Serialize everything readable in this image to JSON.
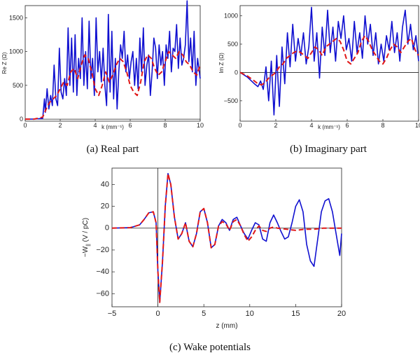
{
  "captions": {
    "a": "(a)  Real part",
    "b": "(b)  Imaginary part",
    "c": "(c)  Wake potentials"
  },
  "colors": {
    "blue": "#1010d0",
    "red": "#e01818",
    "axis": "#222222"
  },
  "chart_data": [
    {
      "id": "a",
      "type": "line",
      "xlabel": "k (mm⁻¹)",
      "ylabel": "Re Z (Ω)",
      "xlim": [
        0,
        10
      ],
      "ylim": [
        -30,
        1680
      ],
      "xticks": [
        0,
        2,
        4,
        6,
        8,
        10
      ],
      "yticks": [
        0,
        500,
        1000,
        1500
      ],
      "grid": false,
      "series": [
        {
          "style": "solid",
          "color": "#1010d0",
          "x": [
            0,
            0.5,
            1.0,
            1.1,
            1.15,
            1.25,
            1.35,
            1.45,
            1.55,
            1.65,
            1.75,
            1.85,
            1.95,
            2.05,
            2.15,
            2.25,
            2.35,
            2.45,
            2.55,
            2.65,
            2.75,
            2.85,
            2.95,
            3.05,
            3.15,
            3.25,
            3.35,
            3.45,
            3.55,
            3.65,
            3.75,
            3.85,
            3.95,
            4.05,
            4.15,
            4.25,
            4.35,
            4.45,
            4.55,
            4.65,
            4.75,
            4.85,
            4.95,
            5.05,
            5.15,
            5.25,
            5.35,
            5.45,
            5.55,
            5.65,
            5.75,
            5.85,
            5.95,
            6.05,
            6.15,
            6.25,
            6.35,
            6.45,
            6.55,
            6.65,
            6.75,
            6.85,
            6.95,
            7.05,
            7.15,
            7.25,
            7.35,
            7.45,
            7.55,
            7.65,
            7.75,
            7.85,
            7.95,
            8.05,
            8.15,
            8.25,
            8.35,
            8.45,
            8.55,
            8.65,
            8.75,
            8.85,
            8.95,
            9.05,
            9.15,
            9.25,
            9.35,
            9.45,
            9.55,
            9.65,
            9.75,
            9.85,
            10.0
          ],
          "y": [
            0,
            0,
            10,
            300,
            100,
            450,
            150,
            350,
            200,
            800,
            300,
            200,
            1050,
            400,
            300,
            600,
            350,
            1350,
            500,
            1200,
            400,
            1250,
            350,
            900,
            600,
            1500,
            500,
            1000,
            450,
            1450,
            600,
            900,
            350,
            1500,
            700,
            1000,
            550,
            1050,
            500,
            200,
            1550,
            400,
            1300,
            300,
            900,
            150,
            700,
            1100,
            900,
            1300,
            700,
            950,
            600,
            850,
            1000,
            500,
            900,
            450,
            1200,
            700,
            1350,
            500,
            800,
            950,
            350,
            700,
            1200,
            1050,
            600,
            1100,
            800,
            1000,
            500,
            1100,
            900,
            1300,
            700,
            1050,
            1000,
            1400,
            750,
            1200,
            800,
            900,
            1100,
            1750,
            850,
            1200,
            700,
            1300,
            500,
            900,
            600
          ]
        },
        {
          "style": "dashed",
          "color": "#e01818",
          "x": [
            0,
            0.5,
            1.0,
            1.2,
            1.4,
            1.6,
            1.8,
            2.0,
            2.2,
            2.4,
            2.6,
            2.8,
            3.0,
            3.2,
            3.4,
            3.6,
            3.8,
            4.0,
            4.2,
            4.4,
            4.6,
            4.8,
            5.0,
            5.2,
            5.4,
            5.6,
            5.8,
            6.0,
            6.2,
            6.4,
            6.6,
            6.8,
            7.0,
            7.2,
            7.4,
            7.6,
            7.8,
            8.0,
            8.2,
            8.4,
            8.6,
            8.8,
            9.0,
            9.2,
            9.4,
            9.6,
            9.8,
            10.0
          ],
          "y": [
            0,
            0,
            30,
            150,
            250,
            300,
            350,
            450,
            550,
            500,
            700,
            750,
            600,
            800,
            950,
            900,
            700,
            450,
            350,
            500,
            700,
            550,
            650,
            800,
            900,
            850,
            700,
            500,
            400,
            350,
            550,
            850,
            950,
            900,
            750,
            650,
            700,
            850,
            1000,
            950,
            900,
            1000,
            950,
            850,
            800,
            700,
            650,
            800
          ]
        }
      ]
    },
    {
      "id": "b",
      "type": "line",
      "xlabel": "k (mm⁻¹)",
      "ylabel": "Im Z (Ω)",
      "xlim": [
        0,
        10
      ],
      "ylim": [
        -860,
        1180
      ],
      "xticks": [
        0,
        2,
        4,
        6,
        8,
        10
      ],
      "yticks": [
        -500,
        0,
        500,
        1000
      ],
      "grid": false,
      "series": [
        {
          "style": "solid",
          "color": "#1010d0",
          "x": [
            0,
            0.4,
            0.8,
            1.0,
            1.15,
            1.3,
            1.45,
            1.6,
            1.75,
            1.9,
            2.05,
            2.2,
            2.35,
            2.5,
            2.65,
            2.8,
            2.95,
            3.1,
            3.25,
            3.4,
            3.55,
            3.7,
            3.85,
            4.0,
            4.15,
            4.3,
            4.45,
            4.6,
            4.75,
            4.9,
            5.05,
            5.2,
            5.35,
            5.5,
            5.65,
            5.8,
            5.95,
            6.1,
            6.25,
            6.4,
            6.55,
            6.7,
            6.85,
            7.0,
            7.15,
            7.3,
            7.45,
            7.6,
            7.75,
            7.9,
            8.05,
            8.2,
            8.35,
            8.5,
            8.65,
            8.8,
            8.95,
            9.1,
            9.25,
            9.4,
            9.55,
            9.7,
            9.85,
            10.0
          ],
          "y": [
            0,
            -80,
            -200,
            -250,
            -150,
            -300,
            100,
            -500,
            200,
            -750,
            300,
            -600,
            450,
            -200,
            700,
            100,
            850,
            200,
            600,
            300,
            700,
            150,
            450,
            1150,
            200,
            700,
            -100,
            800,
            300,
            1100,
            350,
            800,
            200,
            900,
            600,
            1000,
            400,
            600,
            200,
            900,
            350,
            700,
            250,
            1000,
            500,
            850,
            300,
            700,
            150,
            500,
            200,
            650,
            400,
            900,
            350,
            700,
            200,
            800,
            1100,
            500,
            850,
            400,
            650,
            200
          ]
        },
        {
          "style": "dashed",
          "color": "#e01818",
          "x": [
            0,
            0.4,
            0.8,
            1.0,
            1.2,
            1.4,
            1.6,
            1.8,
            2.0,
            2.2,
            2.4,
            2.6,
            2.8,
            3.0,
            3.2,
            3.4,
            3.6,
            3.8,
            4.0,
            4.2,
            4.4,
            4.6,
            4.8,
            5.0,
            5.2,
            5.4,
            5.6,
            5.8,
            6.0,
            6.2,
            6.4,
            6.6,
            6.8,
            7.0,
            7.2,
            7.4,
            7.6,
            7.8,
            8.0,
            8.2,
            8.4,
            8.6,
            8.8,
            9.0,
            9.2,
            9.4,
            9.6,
            9.8,
            10.0
          ],
          "y": [
            0,
            -60,
            -150,
            -200,
            -220,
            -180,
            -100,
            -50,
            0,
            100,
            150,
            250,
            300,
            350,
            380,
            350,
            300,
            250,
            350,
            450,
            400,
            300,
            450,
            500,
            550,
            600,
            550,
            400,
            200,
            150,
            250,
            350,
            550,
            650,
            550,
            400,
            300,
            200,
            150,
            250,
            400,
            500,
            450,
            350,
            450,
            550,
            600,
            400,
            300
          ]
        }
      ]
    },
    {
      "id": "c",
      "type": "line",
      "xlabel": "z (mm)",
      "ylabel": "−W∥ (V / pC)",
      "ylabel_main": "−W",
      "ylabel_sub": "||",
      "ylabel_rest": " (V / pC)",
      "xlim": [
        -5,
        20
      ],
      "ylim": [
        -72,
        55
      ],
      "xticks": [
        -5,
        0,
        5,
        10,
        15,
        20
      ],
      "yticks": [
        40,
        20,
        0,
        -20,
        -40,
        -60
      ],
      "grid": false,
      "series": [
        {
          "style": "solid",
          "color": "#1010d0",
          "x": [
            -5,
            -3,
            -2,
            -1.5,
            -1.0,
            -0.5,
            -0.2,
            0.0,
            0.2,
            0.5,
            0.8,
            1.1,
            1.4,
            1.8,
            2.2,
            2.6,
            3.0,
            3.4,
            3.8,
            4.2,
            4.6,
            5.0,
            5.4,
            5.8,
            6.2,
            6.6,
            7.0,
            7.4,
            7.8,
            8.2,
            8.6,
            9.0,
            9.4,
            9.8,
            10.2,
            10.6,
            11.0,
            11.4,
            11.8,
            12.2,
            12.6,
            13.0,
            13.4,
            13.8,
            14.2,
            14.6,
            15.0,
            15.4,
            15.8,
            16.2,
            16.6,
            17.0,
            17.4,
            17.8,
            18.2,
            18.6,
            19.0,
            19.4,
            19.8,
            20.0
          ],
          "y": [
            0,
            0.5,
            3,
            8,
            14,
            15,
            5,
            -40,
            -68,
            -30,
            20,
            50,
            40,
            10,
            -10,
            -5,
            5,
            -12,
            -17,
            -5,
            15,
            18,
            5,
            -18,
            -15,
            2,
            8,
            5,
            -2,
            8,
            10,
            2,
            -5,
            -10,
            -2,
            5,
            3,
            -10,
            -12,
            5,
            12,
            5,
            -3,
            -10,
            -8,
            5,
            20,
            26,
            15,
            -15,
            -30,
            -35,
            -10,
            15,
            25,
            27,
            15,
            -5,
            -25,
            -5
          ]
        },
        {
          "style": "dashed",
          "color": "#e01818",
          "x": [
            -5,
            -3,
            -2,
            -1.5,
            -1.0,
            -0.5,
            -0.2,
            0.0,
            0.2,
            0.5,
            0.8,
            1.1,
            1.4,
            1.8,
            2.2,
            2.6,
            3.0,
            3.4,
            3.8,
            4.2,
            4.6,
            5.0,
            5.4,
            5.8,
            6.2,
            6.6,
            7.0,
            7.4,
            7.8,
            8.2,
            8.6,
            9.0,
            9.4,
            9.8,
            10.2,
            10.6,
            11.0,
            11.4,
            11.8,
            12.2,
            12.6,
            13.0,
            14,
            15,
            16,
            17,
            18,
            19,
            20
          ],
          "y": [
            0,
            0.5,
            3,
            8,
            14,
            15,
            5,
            -40,
            -68,
            -30,
            20,
            50,
            40,
            10,
            -10,
            -5,
            5,
            -12,
            -17,
            -5,
            15,
            18,
            5,
            -18,
            -15,
            2,
            6,
            4,
            -2,
            6,
            8,
            2,
            -6,
            -12,
            -8,
            -2,
            2,
            -2,
            -3,
            0,
            1,
            0,
            -1,
            -2,
            -1,
            -1,
            0,
            0,
            0
          ]
        }
      ]
    }
  ]
}
